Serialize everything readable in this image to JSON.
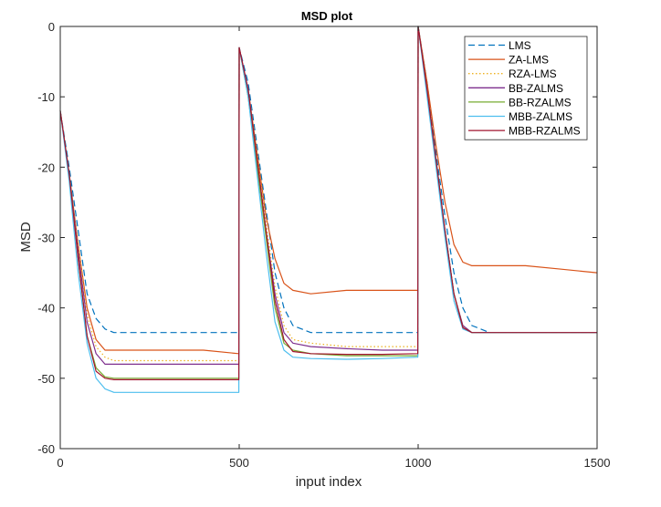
{
  "chart_data": {
    "type": "line",
    "title": "MSD plot",
    "xlabel": "input index",
    "ylabel": "MSD",
    "xlim": [
      0,
      1500
    ],
    "ylim": [
      -60,
      0
    ],
    "xticks": [
      0,
      500,
      1000,
      1500
    ],
    "yticks": [
      0,
      -10,
      -20,
      -30,
      -40,
      -50,
      -60
    ],
    "grid": false,
    "legend_location": "top-right",
    "series": [
      {
        "name": "LMS",
        "color": "#0072BD",
        "dash": "dashed",
        "x": [
          0,
          25,
          50,
          75,
          100,
          125,
          150,
          200,
          300,
          400,
          498,
          499,
          500,
          525,
          550,
          575,
          600,
          625,
          650,
          700,
          800,
          900,
          998,
          999,
          1000,
          1025,
          1050,
          1075,
          1100,
          1125,
          1150,
          1200,
          1300,
          1400,
          1500
        ],
        "y": [
          -12,
          -20,
          -29,
          -38,
          -41.5,
          -43,
          -43.5,
          -43.5,
          -43.5,
          -43.5,
          -43.5,
          -43.5,
          -3,
          -8,
          -17,
          -26,
          -35,
          -40,
          -42.5,
          -43.5,
          -43.5,
          -43.5,
          -43.5,
          -43.5,
          0,
          -8,
          -18,
          -27,
          -35,
          -40,
          -42.5,
          -43.5,
          -43.5,
          -43.5,
          -43.5
        ]
      },
      {
        "name": "ZA-LMS",
        "color": "#D95319",
        "dash": "solid",
        "x": [
          0,
          25,
          50,
          75,
          100,
          125,
          150,
          200,
          300,
          400,
          498,
          499,
          500,
          525,
          550,
          575,
          600,
          625,
          650,
          700,
          800,
          900,
          998,
          999,
          1000,
          1025,
          1050,
          1075,
          1100,
          1125,
          1150,
          1200,
          1300,
          1400,
          1500
        ],
        "y": [
          -12,
          -21,
          -31,
          -40,
          -44.5,
          -46,
          -46,
          -46,
          -46,
          -46,
          -46.5,
          -46.5,
          -3,
          -9,
          -18,
          -27,
          -33,
          -36.5,
          -37.5,
          -38,
          -37.5,
          -37.5,
          -37.5,
          -37.5,
          0,
          -8,
          -17,
          -25,
          -31,
          -33.5,
          -34,
          -34,
          -34,
          -34.5,
          -35
        ]
      },
      {
        "name": "RZA-LMS",
        "color": "#EDB120",
        "dash": "dotted",
        "x": [
          0,
          25,
          50,
          75,
          100,
          125,
          150,
          200,
          300,
          400,
          498,
          499,
          500,
          525,
          550,
          575,
          600,
          625,
          650,
          700,
          800,
          900,
          998,
          999,
          1000,
          1025,
          1050,
          1075,
          1100,
          1125,
          1150,
          1200,
          1300,
          1400,
          1500
        ],
        "y": [
          -12,
          -21,
          -31,
          -41,
          -45.5,
          -47,
          -47.5,
          -47.5,
          -47.5,
          -47.5,
          -47.5,
          -47.5,
          -3,
          -9,
          -18,
          -28,
          -37,
          -42.5,
          -44.5,
          -45,
          -45.5,
          -45.5,
          -45.5,
          -45.5,
          0,
          -9,
          -19,
          -29,
          -38,
          -42.5,
          -43.5,
          -43.5,
          -43.5,
          -43.5,
          -43.5
        ]
      },
      {
        "name": "BB-ZALMS",
        "color": "#7E2F8E",
        "dash": "solid",
        "x": [
          0,
          25,
          50,
          75,
          100,
          125,
          150,
          200,
          300,
          400,
          498,
          499,
          500,
          525,
          550,
          575,
          600,
          625,
          650,
          700,
          800,
          900,
          998,
          999,
          1000,
          1025,
          1050,
          1075,
          1100,
          1125,
          1150,
          1200,
          1300,
          1400,
          1500
        ],
        "y": [
          -12,
          -21,
          -32,
          -42,
          -46.5,
          -48,
          -48,
          -48,
          -48,
          -48,
          -48,
          -48,
          -3,
          -9,
          -19,
          -29,
          -38,
          -43.5,
          -45,
          -45.5,
          -45.8,
          -46,
          -46,
          -46,
          0,
          -9,
          -19,
          -29,
          -38,
          -42.5,
          -43.5,
          -43.5,
          -43.5,
          -43.5,
          -43.5
        ]
      },
      {
        "name": "BB-RZALMS",
        "color": "#77AC30",
        "dash": "solid",
        "x": [
          0,
          25,
          50,
          75,
          100,
          125,
          150,
          200,
          300,
          400,
          498,
          499,
          500,
          525,
          550,
          575,
          600,
          625,
          650,
          700,
          800,
          900,
          998,
          999,
          1000,
          1025,
          1050,
          1075,
          1100,
          1125,
          1150,
          1200,
          1300,
          1400,
          1500
        ],
        "y": [
          -12,
          -21,
          -33,
          -44,
          -48.5,
          -49.8,
          -50,
          -50,
          -50,
          -50,
          -50,
          -50,
          -3,
          -10,
          -20,
          -30,
          -40,
          -45,
          -46,
          -46.5,
          -46.8,
          -46.8,
          -46.8,
          -46.8,
          0,
          -9,
          -19,
          -29,
          -38,
          -42.8,
          -43.5,
          -43.5,
          -43.5,
          -43.5,
          -43.5
        ]
      },
      {
        "name": "MBB-ZALMS",
        "color": "#4DBEEE",
        "dash": "solid",
        "x": [
          0,
          25,
          50,
          75,
          100,
          125,
          150,
          200,
          300,
          400,
          498,
          499,
          500,
          525,
          550,
          575,
          600,
          625,
          650,
          700,
          800,
          900,
          998,
          999,
          1000,
          1025,
          1050,
          1075,
          1100,
          1125,
          1150,
          1200,
          1300,
          1400,
          1500
        ],
        "y": [
          -12,
          -22,
          -35,
          -45,
          -50,
          -51.5,
          -52,
          -52,
          -52,
          -52,
          -52,
          -52,
          -3,
          -10,
          -21,
          -32,
          -42,
          -46,
          -47,
          -47.2,
          -47.3,
          -47.2,
          -47,
          -47,
          0,
          -10,
          -20,
          -30,
          -39,
          -43,
          -43.5,
          -43.5,
          -43.5,
          -43.5,
          -43.5
        ]
      },
      {
        "name": "MBB-RZALMS",
        "color": "#A2142F",
        "dash": "solid",
        "x": [
          0,
          25,
          50,
          75,
          100,
          125,
          150,
          200,
          300,
          400,
          498,
          499,
          500,
          525,
          550,
          575,
          600,
          625,
          650,
          700,
          800,
          900,
          998,
          999,
          1000,
          1025,
          1050,
          1075,
          1100,
          1125,
          1150,
          1200,
          1300,
          1400,
          1500
        ],
        "y": [
          -12,
          -21,
          -33,
          -44,
          -49,
          -50,
          -50.2,
          -50.2,
          -50.2,
          -50.2,
          -50.2,
          -50.2,
          -3,
          -9,
          -19,
          -29,
          -39,
          -44.5,
          -46.2,
          -46.5,
          -46.6,
          -46.6,
          -46.5,
          -46.5,
          0,
          -9,
          -19,
          -29,
          -38,
          -42.8,
          -43.5,
          -43.5,
          -43.5,
          -43.5,
          -43.5
        ]
      }
    ]
  }
}
